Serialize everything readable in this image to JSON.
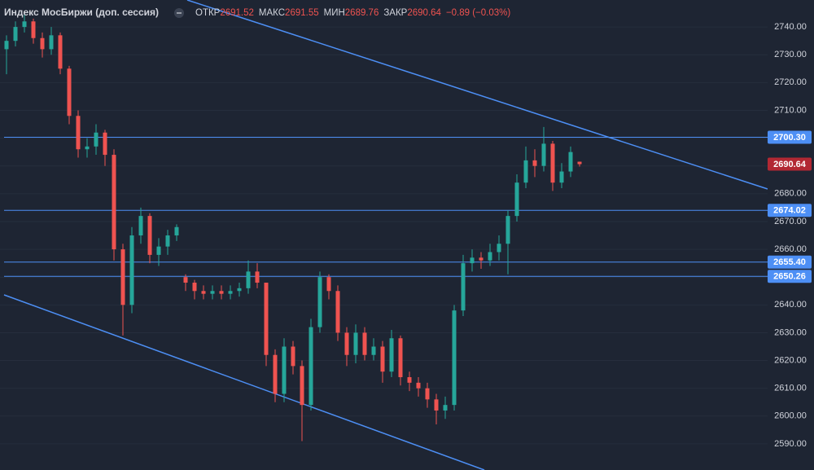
{
  "chart_data": {
    "type": "candlestick",
    "title": "Индекс МосБиржи (доп. сессия)",
    "ohlc_labels": [
      {
        "name": "ОТКР",
        "value": 2691.52
      },
      {
        "name": "МАКС",
        "value": 2691.55
      },
      {
        "name": "МИН",
        "value": 2689.76
      },
      {
        "name": "ЗАКР",
        "value": 2690.64
      }
    ],
    "change": {
      "value": -0.89,
      "label": "−0.89 (−0.03%)"
    },
    "up_color": "#26a69a",
    "down_color": "#ef5350",
    "open": [
      2732,
      2735,
      2740,
      2742,
      2736,
      2732,
      2737,
      2725,
      2708,
      2696,
      2697,
      2702,
      2694,
      2660,
      2640,
      2665,
      2672,
      2658,
      2661,
      2665,
      2650,
      2648,
      2645,
      2644,
      2645,
      2644,
      2645,
      2646,
      2652,
      2648,
      2622,
      2608,
      2625,
      2618,
      2604,
      2632,
      2650,
      2645,
      2630,
      2622,
      2630,
      2622,
      2625,
      2616,
      2628,
      2614,
      2612,
      2610,
      2606,
      2602,
      2604,
      2638,
      2655,
      2657,
      2656,
      2659,
      2662,
      2672,
      2684,
      2692,
      2690,
      2698,
      2684,
      2688,
      2691.52
    ],
    "high": [
      2737,
      2742,
      2745,
      2743,
      2738,
      2740,
      2738,
      2726,
      2710,
      2700,
      2705,
      2703,
      2696,
      2662,
      2668,
      2675,
      2673,
      2664,
      2667,
      2669,
      2651,
      2649,
      2647,
      2647,
      2647,
      2647,
      2648,
      2656,
      2655,
      2648,
      2624,
      2628,
      2627,
      2620,
      2635,
      2652,
      2651,
      2647,
      2632,
      2633,
      2632,
      2628,
      2627,
      2631,
      2629,
      2616,
      2614,
      2612,
      2608,
      2607,
      2640,
      2658,
      2660,
      2659,
      2662,
      2665,
      2674,
      2687,
      2697,
      2696,
      2704,
      2699,
      2691,
      2697,
      2691.55
    ],
    "low": [
      2723,
      2733,
      2738,
      2734,
      2729,
      2730,
      2723,
      2705,
      2693,
      2693,
      2694,
      2690,
      2656,
      2629,
      2637,
      2662,
      2655,
      2654,
      2658,
      2663,
      2645,
      2642,
      2642,
      2642,
      2642,
      2642,
      2643,
      2644,
      2646,
      2618,
      2605,
      2605,
      2615,
      2591,
      2602,
      2630,
      2642,
      2627,
      2618,
      2619,
      2620,
      2620,
      2612,
      2614,
      2611,
      2609,
      2607,
      2603,
      2597,
      2599,
      2602,
      2636,
      2652,
      2653,
      2654,
      2656,
      2651,
      2670,
      2682,
      2686,
      2688,
      2681,
      2682,
      2686,
      2689.76
    ],
    "close": [
      2735,
      2740,
      2742,
      2736,
      2732,
      2737,
      2725,
      2708,
      2696,
      2697,
      2702,
      2694,
      2660,
      2640,
      2665,
      2672,
      2658,
      2661,
      2665,
      2668,
      2648,
      2645,
      2644,
      2645,
      2644,
      2645,
      2646,
      2652,
      2648,
      2622,
      2608,
      2625,
      2618,
      2604,
      2632,
      2650,
      2645,
      2630,
      2622,
      2630,
      2622,
      2625,
      2616,
      2628,
      2614,
      2612,
      2610,
      2606,
      2602,
      2604,
      2638,
      2655,
      2657,
      2656,
      2659,
      2662,
      2672,
      2684,
      2692,
      2690,
      2698,
      2684,
      2688,
      2695,
      2690.64
    ],
    "ylim": [
      2580.6,
      2749.7
    ],
    "yticks": [
      {
        "value": 2590,
        "label": "2590.00"
      },
      {
        "value": 2600,
        "label": "2600.00"
      },
      {
        "value": 2610,
        "label": "2610.00"
      },
      {
        "value": 2620,
        "label": "2620.00"
      },
      {
        "value": 2630,
        "label": "2630.00"
      },
      {
        "value": 2640,
        "label": "2640.00"
      },
      {
        "value": 2650,
        "label": "2650.00"
      },
      {
        "value": 2660,
        "label": "2660.00"
      },
      {
        "value": 2670,
        "label": "2670.00"
      },
      {
        "value": 2680,
        "label": "2680.00"
      },
      {
        "value": 2690,
        "label": "2690.00"
      },
      {
        "value": 2700,
        "label": "2700.00"
      },
      {
        "value": 2710,
        "label": "2710.00"
      },
      {
        "value": 2720,
        "label": "2720.00"
      },
      {
        "value": 2730,
        "label": "2730.00"
      },
      {
        "value": 2740,
        "label": "2740.00"
      }
    ],
    "grid": true,
    "levels": [
      {
        "value": 2700.3,
        "label": "2700.30"
      },
      {
        "value": 2674.02,
        "label": "2674.02"
      },
      {
        "value": 2655.4,
        "label": "2655.40"
      },
      {
        "value": 2650.26,
        "label": "2650.26"
      }
    ],
    "level_color": "#4d8ff5",
    "last_price": {
      "value": 2690.64,
      "label": "2690.64"
    }
  }
}
